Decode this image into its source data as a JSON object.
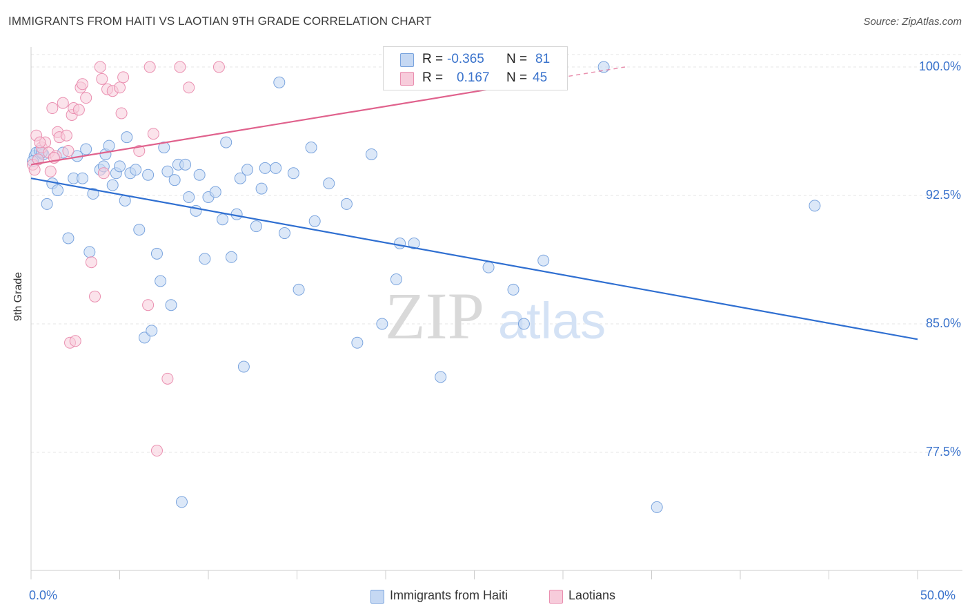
{
  "title": "IMMIGRANTS FROM HAITI VS LAOTIAN 9TH GRADE CORRELATION CHART",
  "source": "Source: ZipAtlas.com",
  "watermark": {
    "zip": "ZIP",
    "atlas": "atlas"
  },
  "colors": {
    "blue_fill": "#c5d8f3",
    "blue_stroke": "#7aa4de",
    "blue_line": "#2f6fd1",
    "pink_fill": "#f7ccdb",
    "pink_stroke": "#ea8fb0",
    "pink_line": "#e0628d",
    "tick_text": "#3a73cc",
    "grid": "#e6e6e6"
  },
  "legend": {
    "r_label": "R =",
    "n_label": "N =",
    "rows": [
      {
        "r": "-0.365",
        "n": "81"
      },
      {
        "r": "0.167",
        "n": "45"
      }
    ]
  },
  "chart_data": {
    "type": "scatter",
    "title": "IMMIGRANTS FROM HAITI VS LAOTIAN 9TH GRADE CORRELATION CHART",
    "xlabel": "",
    "ylabel": "9th Grade",
    "xlim": [
      0.0,
      50.0
    ],
    "ylim": [
      71.0,
      100.8
    ],
    "x_tick_labels": [
      "0.0%",
      "50.0%"
    ],
    "y_ticks": [
      77.5,
      85.0,
      92.5,
      100.0
    ],
    "y_tick_labels": [
      "77.5%",
      "85.0%",
      "92.5%",
      "100.0%"
    ],
    "grid": true,
    "legend_position": "bottom",
    "series": [
      {
        "name": "Immigrants from Haiti",
        "r": -0.365,
        "n": 81,
        "trend": {
          "x": [
            0.0,
            50.0
          ],
          "y": [
            93.5,
            84.1
          ]
        },
        "points": [
          [
            0.2,
            94.8
          ],
          [
            0.3,
            95.0
          ],
          [
            0.4,
            94.6
          ],
          [
            0.5,
            95.1
          ],
          [
            0.7,
            94.9
          ],
          [
            0.9,
            92.0
          ],
          [
            1.2,
            93.2
          ],
          [
            1.5,
            92.8
          ],
          [
            1.8,
            95.0
          ],
          [
            2.1,
            90.0
          ],
          [
            2.4,
            93.5
          ],
          [
            2.6,
            94.8
          ],
          [
            2.9,
            93.5
          ],
          [
            3.1,
            95.2
          ],
          [
            3.3,
            89.2
          ],
          [
            3.5,
            92.6
          ],
          [
            3.9,
            94.0
          ],
          [
            4.1,
            94.2
          ],
          [
            4.2,
            94.9
          ],
          [
            4.4,
            95.4
          ],
          [
            4.6,
            93.1
          ],
          [
            4.8,
            93.8
          ],
          [
            5.0,
            94.2
          ],
          [
            5.3,
            92.2
          ],
          [
            5.4,
            95.9
          ],
          [
            5.6,
            93.8
          ],
          [
            5.9,
            94.0
          ],
          [
            6.1,
            90.5
          ],
          [
            6.4,
            84.2
          ],
          [
            6.6,
            93.7
          ],
          [
            6.8,
            84.6
          ],
          [
            7.1,
            89.1
          ],
          [
            7.3,
            87.5
          ],
          [
            7.5,
            95.3
          ],
          [
            7.7,
            93.9
          ],
          [
            7.9,
            86.1
          ],
          [
            8.1,
            93.4
          ],
          [
            8.3,
            94.3
          ],
          [
            8.5,
            74.6
          ],
          [
            8.7,
            94.3
          ],
          [
            8.9,
            92.4
          ],
          [
            9.3,
            91.6
          ],
          [
            9.5,
            93.7
          ],
          [
            9.8,
            88.8
          ],
          [
            10.0,
            92.4
          ],
          [
            10.4,
            92.7
          ],
          [
            10.8,
            91.1
          ],
          [
            11.0,
            95.6
          ],
          [
            11.3,
            88.9
          ],
          [
            11.6,
            91.4
          ],
          [
            12.0,
            82.5
          ],
          [
            11.8,
            93.5
          ],
          [
            12.2,
            94.0
          ],
          [
            12.7,
            90.7
          ],
          [
            13.0,
            92.9
          ],
          [
            13.2,
            94.1
          ],
          [
            13.8,
            94.1
          ],
          [
            14.0,
            99.1
          ],
          [
            14.3,
            90.3
          ],
          [
            14.8,
            93.8
          ],
          [
            15.1,
            87.0
          ],
          [
            15.8,
            95.3
          ],
          [
            16.0,
            91.0
          ],
          [
            16.8,
            93.2
          ],
          [
            17.8,
            92.0
          ],
          [
            18.4,
            83.9
          ],
          [
            19.2,
            94.9
          ],
          [
            19.8,
            85.0
          ],
          [
            20.6,
            87.6
          ],
          [
            20.8,
            89.7
          ],
          [
            21.6,
            89.7
          ],
          [
            23.1,
            81.9
          ],
          [
            25.8,
            88.3
          ],
          [
            27.2,
            87.0
          ],
          [
            27.8,
            85.0
          ],
          [
            28.9,
            88.7
          ],
          [
            32.3,
            100.0
          ],
          [
            35.3,
            74.3
          ],
          [
            44.2,
            91.9
          ],
          [
            0.1,
            94.5
          ],
          [
            0.6,
            95.0
          ]
        ]
      },
      {
        "name": "Laotians",
        "r": 0.167,
        "n": 45,
        "trend": {
          "x": [
            0.0,
            33.5
          ],
          "y": [
            94.3,
            100.0
          ]
        },
        "points": [
          [
            0.1,
            94.3
          ],
          [
            0.3,
            96.0
          ],
          [
            0.4,
            94.6
          ],
          [
            0.6,
            95.3
          ],
          [
            0.8,
            95.6
          ],
          [
            1.0,
            95.0
          ],
          [
            1.1,
            93.9
          ],
          [
            1.2,
            97.6
          ],
          [
            1.4,
            94.8
          ],
          [
            1.5,
            96.2
          ],
          [
            1.6,
            95.9
          ],
          [
            1.8,
            97.9
          ],
          [
            2.0,
            96.0
          ],
          [
            2.1,
            95.1
          ],
          [
            2.2,
            83.9
          ],
          [
            2.3,
            97.2
          ],
          [
            2.4,
            97.6
          ],
          [
            2.5,
            84.0
          ],
          [
            2.7,
            97.5
          ],
          [
            2.8,
            98.8
          ],
          [
            2.9,
            99.0
          ],
          [
            3.1,
            98.2
          ],
          [
            3.4,
            88.6
          ],
          [
            3.6,
            86.6
          ],
          [
            3.9,
            100.0
          ],
          [
            4.0,
            99.3
          ],
          [
            4.1,
            93.8
          ],
          [
            4.3,
            98.7
          ],
          [
            4.6,
            98.6
          ],
          [
            5.0,
            98.8
          ],
          [
            5.1,
            97.3
          ],
          [
            5.2,
            99.4
          ],
          [
            6.1,
            95.1
          ],
          [
            6.6,
            86.1
          ],
          [
            6.7,
            100.0
          ],
          [
            6.9,
            96.1
          ],
          [
            7.1,
            77.6
          ],
          [
            7.7,
            81.8
          ],
          [
            8.4,
            100.0
          ],
          [
            8.9,
            98.8
          ],
          [
            10.6,
            100.0
          ],
          [
            26.1,
            100.0
          ],
          [
            0.2,
            94.0
          ],
          [
            0.5,
            95.6
          ],
          [
            1.3,
            94.7
          ]
        ]
      }
    ]
  }
}
